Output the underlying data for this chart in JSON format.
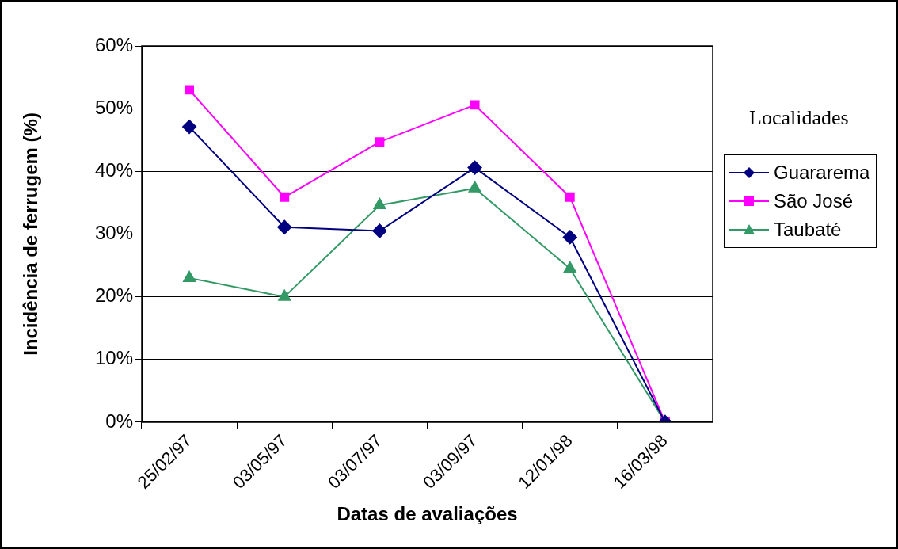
{
  "chart_data": {
    "type": "line",
    "xlabel": "Datas de avaliações",
    "ylabel": "Incidência de ferrugem (%)",
    "legend_title": "Localidades",
    "legend": "right",
    "grid": "y",
    "categories": [
      "25/02/97",
      "03/05/97",
      "03/07/97",
      "03/09/97",
      "12/01/98",
      "16/03/98"
    ],
    "ylim": [
      0,
      60
    ],
    "yticks": [
      {
        "value": 0,
        "label": "0%"
      },
      {
        "value": 10,
        "label": "10%"
      },
      {
        "value": 20,
        "label": "20%"
      },
      {
        "value": 30,
        "label": "30%"
      },
      {
        "value": 40,
        "label": "40%"
      },
      {
        "value": 50,
        "label": "50%"
      },
      {
        "value": 60,
        "label": "60%"
      }
    ],
    "series": [
      {
        "name": "Guararema",
        "color": "#000080",
        "marker": "diamond",
        "values": [
          47.1,
          31.1,
          30.5,
          40.6,
          29.5,
          0
        ]
      },
      {
        "name": "São José",
        "color": "#ff00ff",
        "marker": "square",
        "values": [
          53.0,
          35.9,
          44.7,
          50.6,
          35.9,
          0
        ]
      },
      {
        "name": "Taubaté",
        "color": "#339966",
        "marker": "triangle",
        "values": [
          23.0,
          20.0,
          34.6,
          37.3,
          24.5,
          0
        ]
      }
    ]
  }
}
